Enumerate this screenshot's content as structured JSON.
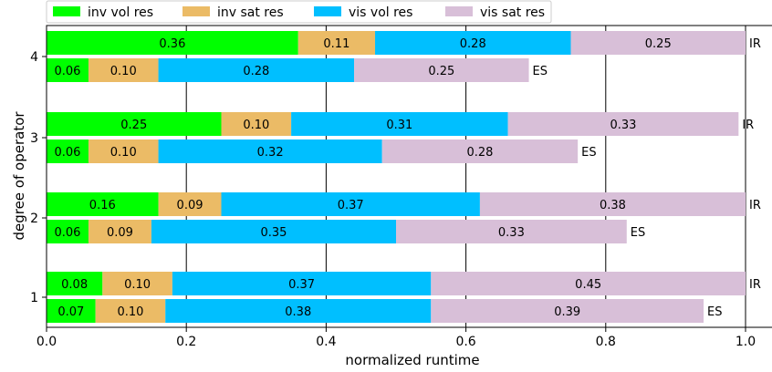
{
  "chart_data": {
    "type": "bar",
    "orientation": "horizontal",
    "stacked": true,
    "xlabel": "normalized runtime",
    "ylabel": "degree of operator",
    "xlim": [
      0.0,
      1.04
    ],
    "x_ticks": [
      "0.0",
      "0.2",
      "0.4",
      "0.6",
      "0.8",
      "1.0"
    ],
    "categories": [
      "1",
      "2",
      "3",
      "4"
    ],
    "grid": "vertical lines at x ticks",
    "legend_position": "top, above plot",
    "series": [
      {
        "name": "inv vol res",
        "color": "#00ff00"
      },
      {
        "name": "inv sat res",
        "color": "#ebbb66"
      },
      {
        "name": "vis vol res",
        "color": "#00bfff"
      },
      {
        "name": "vis sat res",
        "color": "#d8bfd8"
      }
    ],
    "bars": [
      {
        "category": "1",
        "tag": "IR",
        "values": [
          0.08,
          0.1,
          0.37,
          0.45
        ],
        "labels": [
          "0.08",
          "0.10",
          "0.37",
          "0.45"
        ]
      },
      {
        "category": "1",
        "tag": "ES",
        "values": [
          0.07,
          0.1,
          0.38,
          0.39
        ],
        "labels": [
          "0.07",
          "0.10",
          "0.38",
          "0.39"
        ]
      },
      {
        "category": "2",
        "tag": "IR",
        "values": [
          0.16,
          0.09,
          0.37,
          0.38
        ],
        "labels": [
          "0.16",
          "0.09",
          "0.37",
          "0.38"
        ]
      },
      {
        "category": "2",
        "tag": "ES",
        "values": [
          0.06,
          0.09,
          0.35,
          0.33
        ],
        "labels": [
          "0.06",
          "0.09",
          "0.35",
          "0.33"
        ]
      },
      {
        "category": "3",
        "tag": "IR",
        "values": [
          0.25,
          0.1,
          0.31,
          0.33
        ],
        "labels": [
          "0.25",
          "0.10",
          "0.31",
          "0.33"
        ]
      },
      {
        "category": "3",
        "tag": "ES",
        "values": [
          0.06,
          0.1,
          0.32,
          0.28
        ],
        "labels": [
          "0.06",
          "0.10",
          "0.32",
          "0.28"
        ]
      },
      {
        "category": "4",
        "tag": "IR",
        "values": [
          0.36,
          0.11,
          0.28,
          0.25
        ],
        "labels": [
          "0.36",
          "0.11",
          "0.28",
          "0.25"
        ]
      },
      {
        "category": "4",
        "tag": "ES",
        "values": [
          0.06,
          0.1,
          0.28,
          0.25
        ],
        "labels": [
          "0.06",
          "0.10",
          "0.28",
          "0.25"
        ]
      }
    ]
  }
}
